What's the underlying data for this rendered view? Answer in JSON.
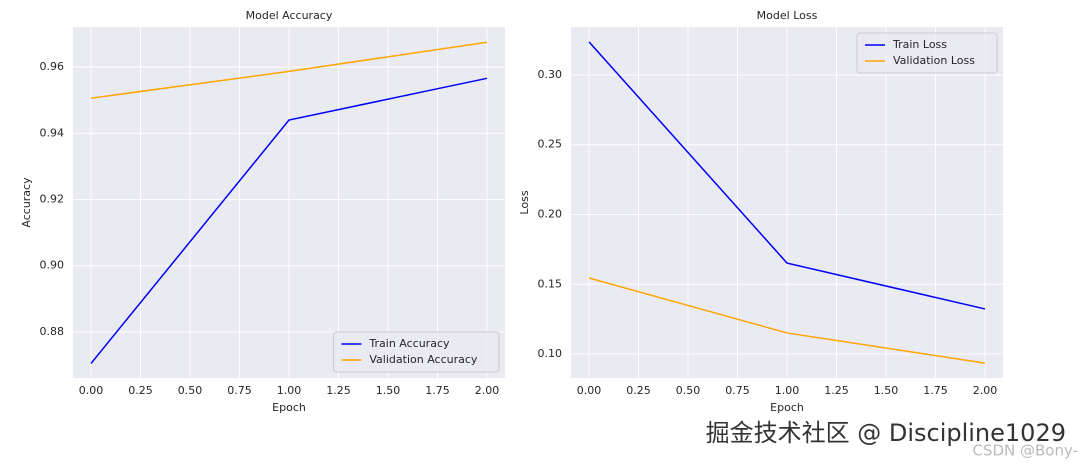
{
  "chart_data": [
    {
      "type": "line",
      "title": "Model Accuracy",
      "x_label": "Epoch",
      "y_label": "Accuracy",
      "x": [
        0,
        1,
        2
      ],
      "series": [
        {
          "name": "Train Accuracy",
          "color": "blue",
          "values": [
            0.8705,
            0.944,
            0.9566
          ]
        },
        {
          "name": "Validation Accuracy",
          "color": "orange",
          "values": [
            0.9506,
            0.9587,
            0.9675
          ]
        }
      ],
      "xlim": [
        -0.091,
        2.091
      ],
      "xticks": [
        {
          "value": 0,
          "label": "0.00"
        },
        0.25,
        {
          "value": 0.5,
          "label": "0.50"
        },
        0.75,
        {
          "value": 1,
          "label": "1.00"
        },
        1.25,
        {
          "value": 1.5,
          "label": "1.50"
        },
        1.75,
        {
          "value": 2,
          "label": "2.00"
        }
      ],
      "ylim": [
        0.8661,
        0.9721
      ],
      "yticks": [
        0.88,
        {
          "value": 0.9,
          "label": "0.90"
        },
        0.92,
        0.94,
        0.96
      ],
      "grid": true,
      "legend": "lower right"
    },
    {
      "type": "line",
      "title": "Model Loss",
      "x_label": "Epoch",
      "y_label": "Loss",
      "x": [
        0,
        1,
        2
      ],
      "series": [
        {
          "name": "Train Loss",
          "color": "blue",
          "values": [
            0.3237,
            0.1652,
            0.1323
          ]
        },
        {
          "name": "Validation Loss",
          "color": "orange",
          "values": [
            0.1545,
            0.1151,
            0.0935
          ]
        }
      ],
      "xlim": [
        -0.091,
        2.091
      ],
      "xticks": [
        {
          "value": 0,
          "label": "0.00"
        },
        0.25,
        {
          "value": 0.5,
          "label": "0.50"
        },
        0.75,
        {
          "value": 1,
          "label": "1.00"
        },
        1.25,
        {
          "value": 1.5,
          "label": "1.50"
        },
        1.75,
        {
          "value": 2,
          "label": "2.00"
        }
      ],
      "ylim": [
        0.0828,
        0.3344
      ],
      "yticks": [
        {
          "value": 0.1,
          "label": "0.10"
        },
        0.15,
        {
          "value": 0.2,
          "label": "0.20"
        },
        0.25,
        {
          "value": 0.3,
          "label": "0.30"
        }
      ],
      "grid": true,
      "legend": "upper right"
    }
  ],
  "watermarks": [
    "掘金技术社区 @ Discipline1029",
    "CSDN @Bony-"
  ]
}
